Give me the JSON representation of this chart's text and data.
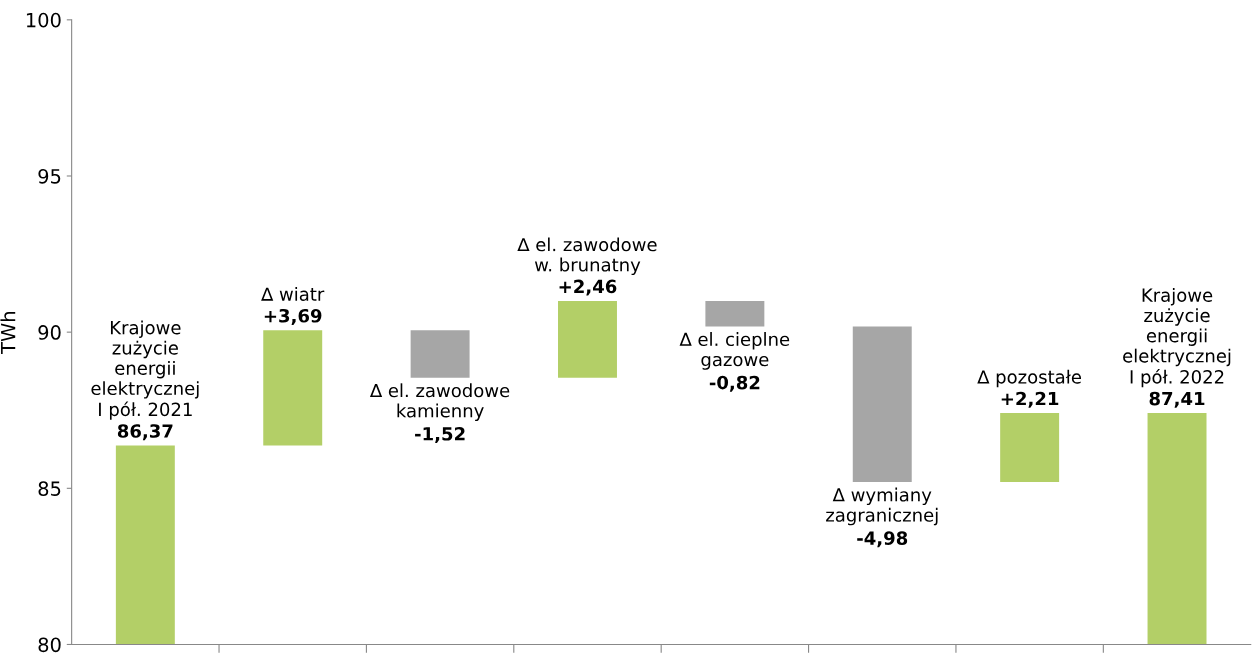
{
  "chart_data": {
    "type": "bar",
    "ylabel": "TWh",
    "categories": [
      "Krajowe\nzużycie\nenergii\nelektrycznej\nI pół. 2021",
      "∆ wiatr",
      "∆ el. zawodowe\nkamienny",
      "∆ el. zawodowe\nw. brunatny",
      "∆ el. cieplne\ngazowe",
      "Δ wymiany\nzagranicznej",
      "∆ pozostałe",
      "Krajowe\nzużycie\nenergii\nelektrycznej\nI pół. 2022"
    ],
    "values": [
      86.37,
      3.69,
      -1.52,
      2.46,
      -0.82,
      -4.98,
      2.21,
      87.41
    ],
    "base": [
      0,
      86.37,
      90.06,
      88.54,
      91.0,
      90.18,
      85.2,
      0
    ],
    "colors": [
      "#b3cf67",
      "#b3cf67",
      "#a6a6a6",
      "#b3cf67",
      "#a6a6a6",
      "#a6a6a6",
      "#b3cf67",
      "#b3cf67"
    ],
    "value_labels": [
      "86,37",
      "+3,69",
      "-1,52",
      "+2,46",
      "-0,82",
      "-4,98",
      "+2,21",
      "87,41"
    ],
    "ylim": [
      80,
      100
    ],
    "yticks": [
      80,
      85,
      90,
      95,
      100
    ],
    "tick_labels": "y",
    "grid": false
  }
}
